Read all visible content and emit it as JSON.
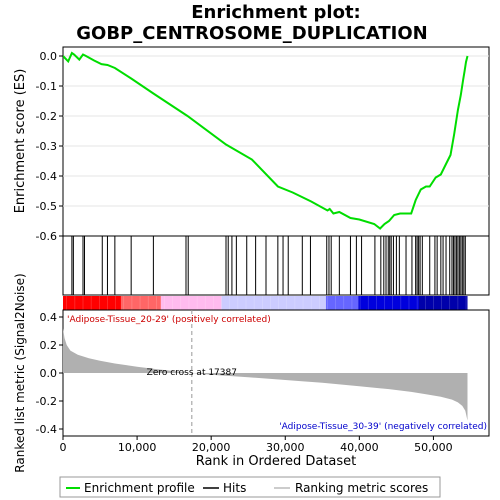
{
  "chart_data": {
    "type": "line",
    "title_line1": "Enrichment plot:",
    "title_line2": "GOBP_CENTROSOME_DUPLICATION",
    "es_panel": {
      "ylabel": "Enrichment score (ES)",
      "ylim": [
        -0.6,
        0.03
      ],
      "yticks": [
        0.0,
        -0.1,
        -0.2,
        -0.3,
        -0.4,
        -0.5,
        -0.6
      ],
      "ytick_labels": [
        "0.0",
        "-0.1",
        "-0.2",
        "-0.3",
        "-0.4",
        "-0.5",
        "-0.6"
      ],
      "x": [
        0,
        700,
        1200,
        1500,
        2200,
        2700,
        3100,
        4200,
        5200,
        6000,
        7000,
        9200,
        12200,
        16800,
        22000,
        25500,
        29000,
        31000,
        33500,
        35700,
        36000,
        36500,
        37300,
        38800,
        40000,
        42000,
        42800,
        43400,
        44000,
        44700,
        45500,
        46200,
        47000,
        47600,
        48300,
        49000,
        49500,
        50300,
        51000,
        51700,
        52300,
        52800,
        53300,
        53700,
        54000,
        54200,
        54400,
        54600
      ],
      "y": [
        0.0,
        -0.018,
        0.01,
        0.005,
        -0.012,
        0.005,
        0.0,
        -0.015,
        -0.027,
        -0.03,
        -0.04,
        -0.075,
        -0.125,
        -0.2,
        -0.295,
        -0.345,
        -0.435,
        -0.455,
        -0.485,
        -0.515,
        -0.51,
        -0.525,
        -0.52,
        -0.54,
        -0.545,
        -0.56,
        -0.575,
        -0.56,
        -0.55,
        -0.53,
        -0.525,
        -0.525,
        -0.525,
        -0.48,
        -0.445,
        -0.435,
        -0.435,
        -0.405,
        -0.395,
        -0.36,
        -0.33,
        -0.26,
        -0.18,
        -0.13,
        -0.08,
        -0.05,
        -0.02,
        0.0
      ]
    },
    "hits_panel": {
      "hit_ranks": [
        1200,
        1400,
        2700,
        2900,
        5300,
        6000,
        7000,
        9200,
        12200,
        16600,
        16900,
        22000,
        22300,
        22800,
        23400,
        24800,
        26000,
        27400,
        29000,
        29700,
        30400,
        32300,
        33400,
        35600,
        35900,
        36200,
        37300,
        38800,
        39600,
        40300,
        42100,
        42900,
        43300,
        43600,
        43900,
        44100,
        44300,
        44600,
        45000,
        45400,
        46300,
        47100,
        47600,
        47800,
        48000,
        48200,
        48500,
        49500,
        50200,
        50500,
        51000,
        51300,
        51700,
        52200,
        52500,
        52700,
        52900,
        53100,
        53300,
        53500,
        53700,
        53900,
        54100,
        54300
      ]
    },
    "metric_panel": {
      "ylabel": "Ranked list metric (Signal2Noise)",
      "ylim": [
        -0.45,
        0.45
      ],
      "yticks": [
        0.4,
        0.2,
        0.0,
        -0.2,
        -0.4
      ],
      "ytick_labels": [
        "0.4",
        "0.2",
        "0.0",
        "-0.2",
        "-0.4"
      ],
      "x": [
        0,
        200,
        500,
        1000,
        2000,
        3500,
        5000,
        7000,
        10000,
        13000,
        16000,
        17387,
        20000,
        25000,
        30000,
        35000,
        40000,
        44000,
        47000,
        49000,
        51000,
        52500,
        53300,
        53900,
        54300,
        54600
      ],
      "y": [
        0.32,
        0.25,
        0.2,
        0.16,
        0.13,
        0.105,
        0.087,
        0.068,
        0.045,
        0.025,
        0.008,
        0.0,
        -0.012,
        -0.03,
        -0.05,
        -0.07,
        -0.095,
        -0.115,
        -0.135,
        -0.152,
        -0.17,
        -0.19,
        -0.21,
        -0.235,
        -0.27,
        -0.34
      ],
      "zero_cross_label": "Zero cross at 17387",
      "zero_cross": 17387,
      "pos_label": "'Adipose-Tissue_20-29' (positively correlated)",
      "neg_label": "'Adipose-Tissue_30-39' (negatively correlated)"
    },
    "xaxis": {
      "xlabel": "Rank in Ordered Dataset",
      "xlim": [
        0,
        57500
      ],
      "n_genes": 54600,
      "xticks": [
        0,
        10000,
        20000,
        30000,
        40000,
        50000
      ],
      "xtick_labels": [
        "0",
        "10,000",
        "20,000",
        "30,000",
        "40,000",
        "50,000"
      ]
    },
    "legend": [
      {
        "label": "Enrichment profile",
        "color": "#00dd00"
      },
      {
        "label": "Hits",
        "color": "#000000"
      },
      {
        "label": "Ranking metric scores",
        "color": "#bbbbbb"
      }
    ],
    "colors": {
      "es_line": "#00dd00",
      "metric_fill": "#b0b0b0",
      "pos_text": "#cc0000",
      "neg_text": "#0000cc",
      "gradient_stops": [
        "#ff0000",
        "#ff6666",
        "#ffbbee",
        "#ccccff",
        "#6666ff",
        "#0000dd",
        "#0000aa"
      ]
    }
  }
}
